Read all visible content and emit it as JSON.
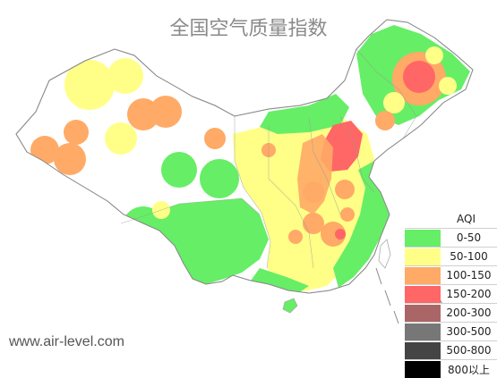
{
  "title": "全国空气质量指数",
  "watermark": "www.air-level.com",
  "legend": {
    "title": "AQI",
    "items": [
      {
        "label": "0-50",
        "color": "#66ee66"
      },
      {
        "label": "50-100",
        "color": "#ffff88"
      },
      {
        "label": "100-150",
        "color": "#ffaa66"
      },
      {
        "label": "150-200",
        "color": "#ff6666"
      },
      {
        "label": "200-300",
        "color": "#aa6666"
      },
      {
        "label": "300-500",
        "color": "#777777"
      },
      {
        "label": "500-800",
        "color": "#444444"
      },
      {
        "label": "800以上",
        "color": "#000000"
      }
    ]
  }
}
